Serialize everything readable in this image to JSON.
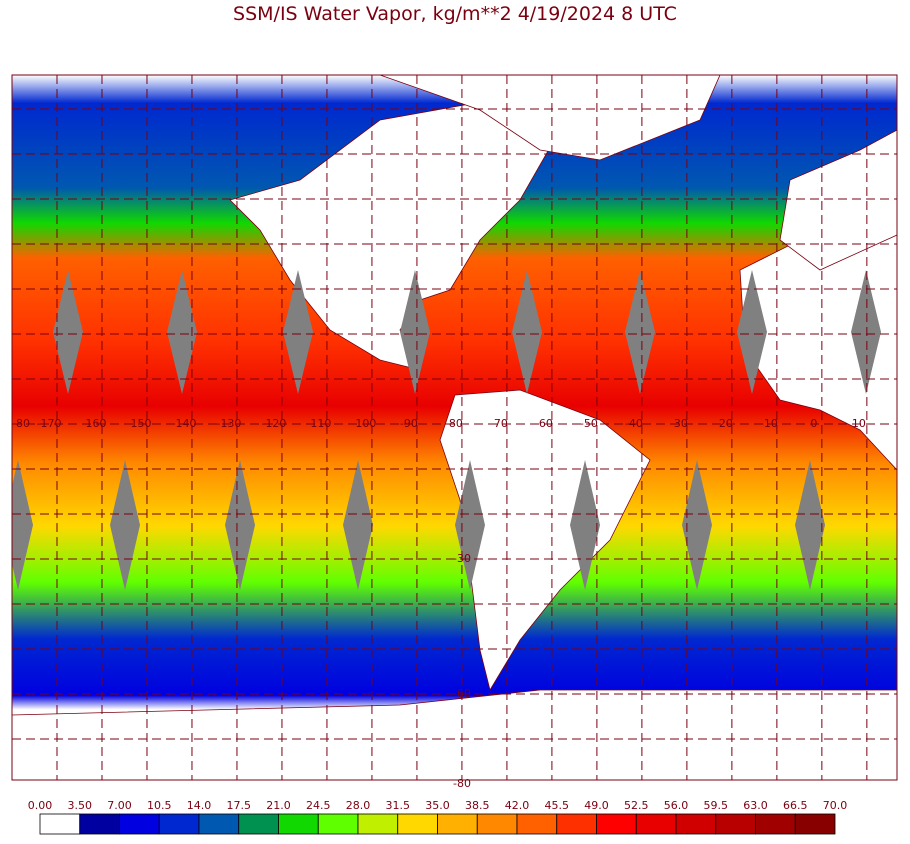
{
  "title": "SSM/IS Water Vapor, kg/m**2 4/19/2024 8 UTC",
  "longitude_labels": [
    "80",
    "-170",
    "-160",
    "-150",
    "-140",
    "-130",
    "-120",
    "-110",
    "-100",
    "-90",
    "-80",
    "-70",
    "-60",
    "-50",
    "-40",
    "-30",
    "-20",
    "-10",
    "0",
    "10"
  ],
  "latitude_labels": [
    "-30",
    "-60",
    "-80"
  ],
  "colorbar": {
    "labels": [
      "0.00",
      "3.50",
      "7.00",
      "10.5",
      "14.0",
      "17.5",
      "21.0",
      "24.5",
      "28.0",
      "31.5",
      "35.0",
      "38.5",
      "42.0",
      "45.5",
      "49.0",
      "52.5",
      "56.0",
      "59.5",
      "63.0",
      "66.5",
      "70.0"
    ],
    "colors": [
      "#ffffff",
      "#0000a0",
      "#0000e0",
      "#0028d0",
      "#0058b0",
      "#009050",
      "#10d800",
      "#60ff00",
      "#c0f000",
      "#ffd800",
      "#ffb000",
      "#ff8800",
      "#ff6000",
      "#ff3000",
      "#ff0000",
      "#e80000",
      "#d00000",
      "#b80000",
      "#a00000",
      "#880000"
    ]
  }
}
